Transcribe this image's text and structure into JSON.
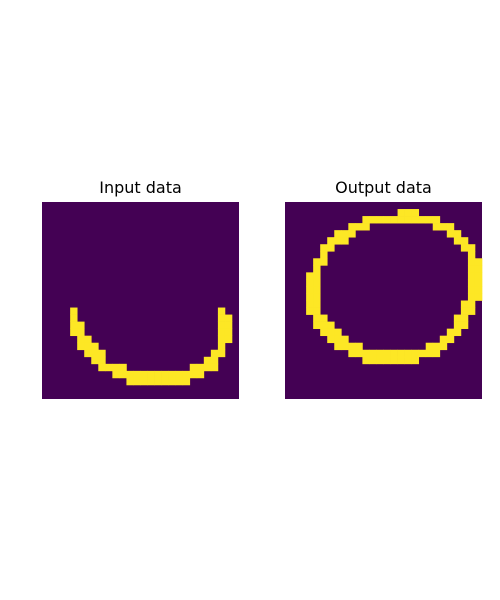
{
  "colors": {
    "background": "#440154",
    "foreground": "#fde725",
    "figure": "#ffffff"
  },
  "chart_data": [
    {
      "type": "heatmap",
      "title": "Input data",
      "grid": false,
      "rows": 28,
      "cols": 28,
      "values_encoding": "binary image; each string is one row, '1' = yellow pixel, '0' = dark purple pixel",
      "values": [
        "0000000000000000000000000000",
        "0000000000000000000000000000",
        "0000000000000000000000000000",
        "0000000000000000000000000000",
        "0000000000000000000000000000",
        "0000000000000000000000000000",
        "0000000000000000000000000000",
        "0000000000000000000000000000",
        "0000000000000000000000000000",
        "0000000000000000000000000000",
        "0000000000000000000000000000",
        "0000000000000000000000000000",
        "0000000000000000000000000000",
        "0000000000000000000000000000",
        "0000000000000000000000000000",
        "0000100000000000000000000100",
        "0000100000000000000000000110",
        "0000110000000000000000000110",
        "0000110000000000000000000110",
        "0000011000000000000000000110",
        "0000011100000000000000000100",
        "0000001110000000000000001100",
        "0000000110000000000000011000",
        "0000000011110000000001111000",
        "0000000000111111111111100000",
        "0000000000001111111110000000",
        "0000000000000000000000000000",
        "0000000000000000000000000000"
      ]
    },
    {
      "type": "heatmap",
      "title": "Output data",
      "grid": false,
      "rows": 28,
      "cols": 28,
      "values_encoding": "binary image; each string is one row, '1' = yellow pixel, '0' = dark purple pixel",
      "values": [
        "0000000000000000000000000000",
        "0000000000000000111000000000",
        "0000000000011111111111000000",
        "0000000001110000000001110000",
        "0000000111000000000000011000",
        "0000001110000000000000001100",
        "0000011000000000000000000110",
        "0000010000000000000000000010",
        "0000110000000000000000000011",
        "0000100000000000000000000011",
        "0001100000000000000000000011",
        "0001100000000000000000000011",
        "0001100000000000000000000011",
        "0001100000000000000000000011",
        "0001100000000000000000000110",
        "0001100000000000000000000110",
        "0000110000000000000000001100",
        "0000111000000000000000001100",
        "0000011100000000000000011000",
        "0000001110000000000000110000",
        "0000000111100000000011100000",
        "0000000001111111111111000000",
        "0000000000011111111000000000",
        "0000000000000000000000000000",
        "0000000000000000000000000000",
        "0000000000000000000000000000",
        "0000000000000000000000000000",
        "0000000000000000000000000000"
      ]
    }
  ]
}
